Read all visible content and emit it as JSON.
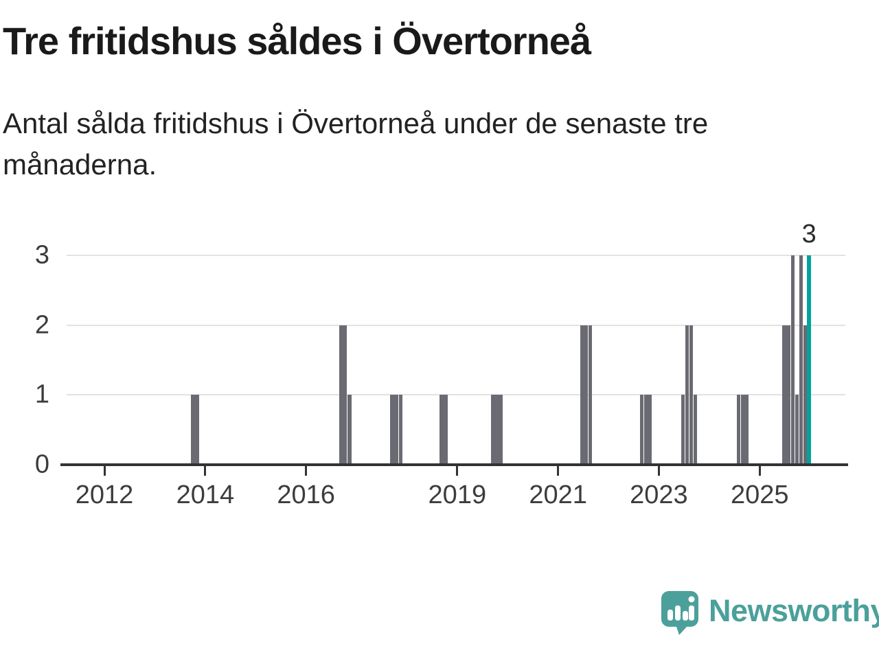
{
  "header": {
    "title": "Tre fritidshus såldes i Övertorneå",
    "subtitle_lines": [
      "Antal sålda fritidshus i Övertorneå under de senaste tre",
      "månaderna."
    ]
  },
  "colors": {
    "bar": "#6a6a72",
    "highlight": "#00a39d",
    "grid": "#e2e2e2",
    "axis": "#333333",
    "tick_text": "#3c3c3c",
    "logo": "#4ba09b"
  },
  "chart_data": {
    "type": "bar",
    "title": "Tre fritidshus såldes i Övertorneå",
    "subtitle": "Antal sålda fritidshus i Övertorneå under de senaste tre månaderna.",
    "xlabel": "",
    "ylabel": "",
    "grid": "horizontal",
    "legend": "none",
    "xlim": [
      2011.25,
      2026.7
    ],
    "ylim": [
      0,
      3
    ],
    "y_ticks": [
      0,
      1,
      2,
      3
    ],
    "x_ticks": [
      2012,
      2014,
      2016,
      2019,
      2021,
      2023,
      2025
    ],
    "bar_width_months": 1,
    "bars": [
      {
        "x": 2013.76,
        "value": 1
      },
      {
        "x": 2013.84,
        "value": 1
      },
      {
        "x": 2016.69,
        "value": 2
      },
      {
        "x": 2016.77,
        "value": 2
      },
      {
        "x": 2016.86,
        "value": 1
      },
      {
        "x": 2017.71,
        "value": 1
      },
      {
        "x": 2017.79,
        "value": 1
      },
      {
        "x": 2017.88,
        "value": 1
      },
      {
        "x": 2018.69,
        "value": 1
      },
      {
        "x": 2018.77,
        "value": 1
      },
      {
        "x": 2019.71,
        "value": 1
      },
      {
        "x": 2019.79,
        "value": 1
      },
      {
        "x": 2019.87,
        "value": 1
      },
      {
        "x": 2021.48,
        "value": 2
      },
      {
        "x": 2021.56,
        "value": 2
      },
      {
        "x": 2021.64,
        "value": 2
      },
      {
        "x": 2022.66,
        "value": 1
      },
      {
        "x": 2022.74,
        "value": 1
      },
      {
        "x": 2022.82,
        "value": 1
      },
      {
        "x": 2023.48,
        "value": 1
      },
      {
        "x": 2023.56,
        "value": 2
      },
      {
        "x": 2023.64,
        "value": 2
      },
      {
        "x": 2023.72,
        "value": 1
      },
      {
        "x": 2024.58,
        "value": 1
      },
      {
        "x": 2024.66,
        "value": 1
      },
      {
        "x": 2024.74,
        "value": 1
      },
      {
        "x": 2025.49,
        "value": 2
      },
      {
        "x": 2025.57,
        "value": 2
      },
      {
        "x": 2025.66,
        "value": 3
      },
      {
        "x": 2025.74,
        "value": 1
      },
      {
        "x": 2025.82,
        "value": 3
      },
      {
        "x": 2025.9,
        "value": 2
      },
      {
        "x": 2025.98,
        "value": 3,
        "highlight": true
      }
    ],
    "annotation": {
      "label": "3",
      "x": 2025.98,
      "y": 3
    }
  },
  "footer": {
    "brand_name": "Newsworthy"
  }
}
